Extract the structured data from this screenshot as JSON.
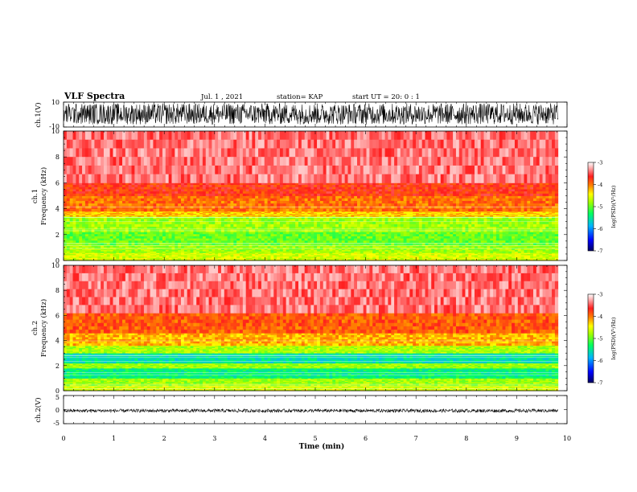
{
  "header": {
    "title": "VLF Spectra",
    "date": "Jul. 1 , 2021",
    "station": "station= KAP",
    "start_ut": "start UT = 20: 0 : 1"
  },
  "colors": {
    "colormap": [
      "#000080",
      "#0000ff",
      "#00c8ff",
      "#00ff60",
      "#a0ff00",
      "#ffff00",
      "#ff8000",
      "#ff1e1e",
      "#ffd0d0",
      "#ffffff"
    ]
  },
  "chart_data": [
    {
      "type": "line",
      "panel": "waveform-ch1",
      "ylabel": "ch.1(V)",
      "yticks": [
        "10",
        "-10"
      ],
      "ylim": [
        -10,
        10
      ],
      "xlim": [
        0,
        9.82
      ],
      "envelope": [
        -8,
        9
      ]
    },
    {
      "type": "heatmap",
      "panel": "spectrogram-ch1",
      "ylabel_line1": "ch.1",
      "ylabel_line2": "Frequency (kHz)",
      "yticks": [
        "0",
        "2",
        "4",
        "6",
        "8",
        "10"
      ],
      "ylim": [
        0,
        10
      ],
      "xlim": [
        0,
        9.82
      ],
      "bands": [
        {
          "from": 0,
          "to": 0.6,
          "level": 0.6
        },
        {
          "from": 0.6,
          "to": 1.2,
          "level": 0.55
        },
        {
          "from": 1.2,
          "to": 2.2,
          "level": 0.5
        },
        {
          "from": 2.2,
          "to": 3.4,
          "level": 0.55
        },
        {
          "from": 3.4,
          "to": 3.8,
          "level": 0.68
        },
        {
          "from": 3.8,
          "to": 5.0,
          "level": 0.76
        },
        {
          "from": 5.0,
          "to": 6.0,
          "level": 0.82
        },
        {
          "from": 6.0,
          "to": 10.0,
          "level": 0.9
        }
      ],
      "colorbar": {
        "label": "log(PSD)(V²/Hz)",
        "ticks": [
          "-3",
          "-4",
          "-5",
          "-6",
          "-7"
        ],
        "range": [
          -7,
          -3
        ]
      }
    },
    {
      "type": "heatmap",
      "panel": "spectrogram-ch2",
      "ylabel_line1": "ch.2",
      "ylabel_line2": "Frequency (kHz)",
      "yticks": [
        "0",
        "2",
        "4",
        "6",
        "8",
        "10"
      ],
      "ylim": [
        0,
        10
      ],
      "xlim": [
        0,
        9.82
      ],
      "bands": [
        {
          "from": 0,
          "to": 0.4,
          "level": 0.6
        },
        {
          "from": 0.4,
          "to": 1.0,
          "level": 0.55
        },
        {
          "from": 1.0,
          "to": 1.8,
          "level": 0.4
        },
        {
          "from": 1.8,
          "to": 2.2,
          "level": 0.55
        },
        {
          "from": 2.2,
          "to": 3.0,
          "level": 0.36
        },
        {
          "from": 3.0,
          "to": 3.6,
          "level": 0.56
        },
        {
          "from": 3.6,
          "to": 4.6,
          "level": 0.7
        },
        {
          "from": 4.6,
          "to": 6.2,
          "level": 0.78
        },
        {
          "from": 6.2,
          "to": 10.0,
          "level": 0.9
        }
      ],
      "colorbar": {
        "label": "log(PSD)(V²/Hz)",
        "ticks": [
          "-3",
          "-4",
          "-5",
          "-6",
          "-7"
        ],
        "range": [
          -7,
          -3
        ]
      }
    },
    {
      "type": "line",
      "panel": "waveform-ch2",
      "ylabel": "ch.2(V)",
      "yticks": [
        "5",
        "0",
        "-5"
      ],
      "ylim": [
        -5,
        5
      ],
      "xlim": [
        0,
        9.82
      ],
      "envelope": [
        -1,
        0.2
      ]
    }
  ],
  "xaxis": {
    "label": "Time (min)",
    "ticks": [
      "0",
      "1",
      "2",
      "3",
      "4",
      "5",
      "6",
      "7",
      "8",
      "9",
      "10"
    ],
    "range": [
      0,
      10
    ]
  }
}
